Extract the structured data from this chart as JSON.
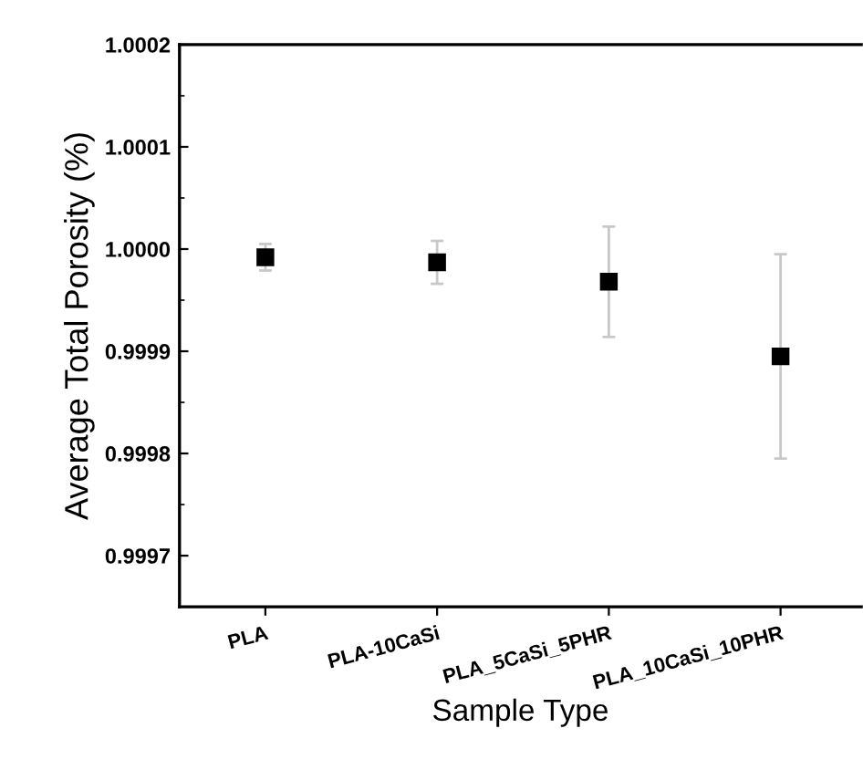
{
  "chart_data": {
    "type": "scatter",
    "xlabel": "Sample Type",
    "ylabel": "Average Total Porosity (%)",
    "categories": [
      "PLA",
      "PLA-10CaSi",
      "PLA_5CaSi_5PHR",
      "PLA_10CaSi_10PHR"
    ],
    "series": [
      {
        "color": "#000000",
        "values": [
          0.999992,
          0.999987,
          0.999968,
          0.999895
        ],
        "errors": [
          1.3e-05,
          2.1e-05,
          5.4e-05,
          0.0001
        ]
      }
    ],
    "ylim": [
      0.99965,
      1.0002
    ],
    "yticks": [
      {
        "value": 0.9997,
        "label": "0.9997"
      },
      {
        "value": 0.9998,
        "label": "0.9998"
      },
      {
        "value": 0.9999,
        "label": "0.9999"
      },
      {
        "value": 1.0,
        "label": "1.0000"
      },
      {
        "value": 1.0001,
        "label": "1.0001"
      },
      {
        "value": 1.0002,
        "label": "1.0002"
      }
    ],
    "marker": "square",
    "grid": false,
    "legend": false
  }
}
